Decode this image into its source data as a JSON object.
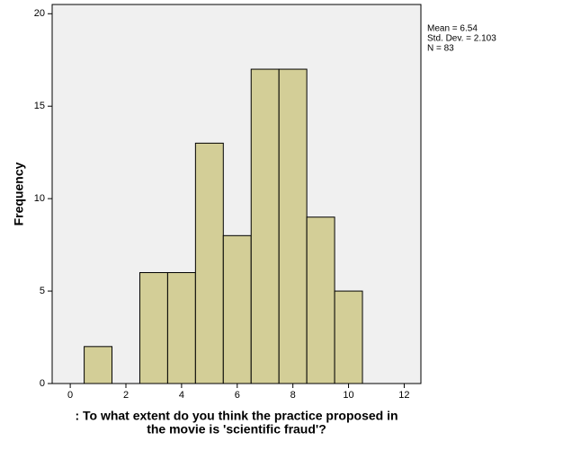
{
  "chart_data": {
    "type": "histogram",
    "y_label": "Frequency",
    "x_label": [
      ": To what extent do you think the practice proposed in",
      "the movie is 'scientific fraud'?"
    ],
    "annotations": [
      "Mean = 6.54",
      "Std. Dev. = 2.103",
      "N = 83"
    ],
    "bins": [
      0.5,
      1.5,
      2.5,
      3.5,
      4.5,
      5.5,
      6.5,
      7.5,
      8.5,
      9.5,
      10.5
    ],
    "counts": [
      2,
      0,
      6,
      6,
      13,
      8,
      17,
      17,
      9,
      5
    ],
    "color": "#d3ce97",
    "xlim": [
      -0.65,
      12.6
    ],
    "xticks": [
      0,
      2,
      4,
      6,
      8,
      10,
      12
    ],
    "ylim": [
      0,
      20.5
    ],
    "yticks": [
      0,
      5,
      10,
      15,
      20
    ],
    "grid": false
  }
}
